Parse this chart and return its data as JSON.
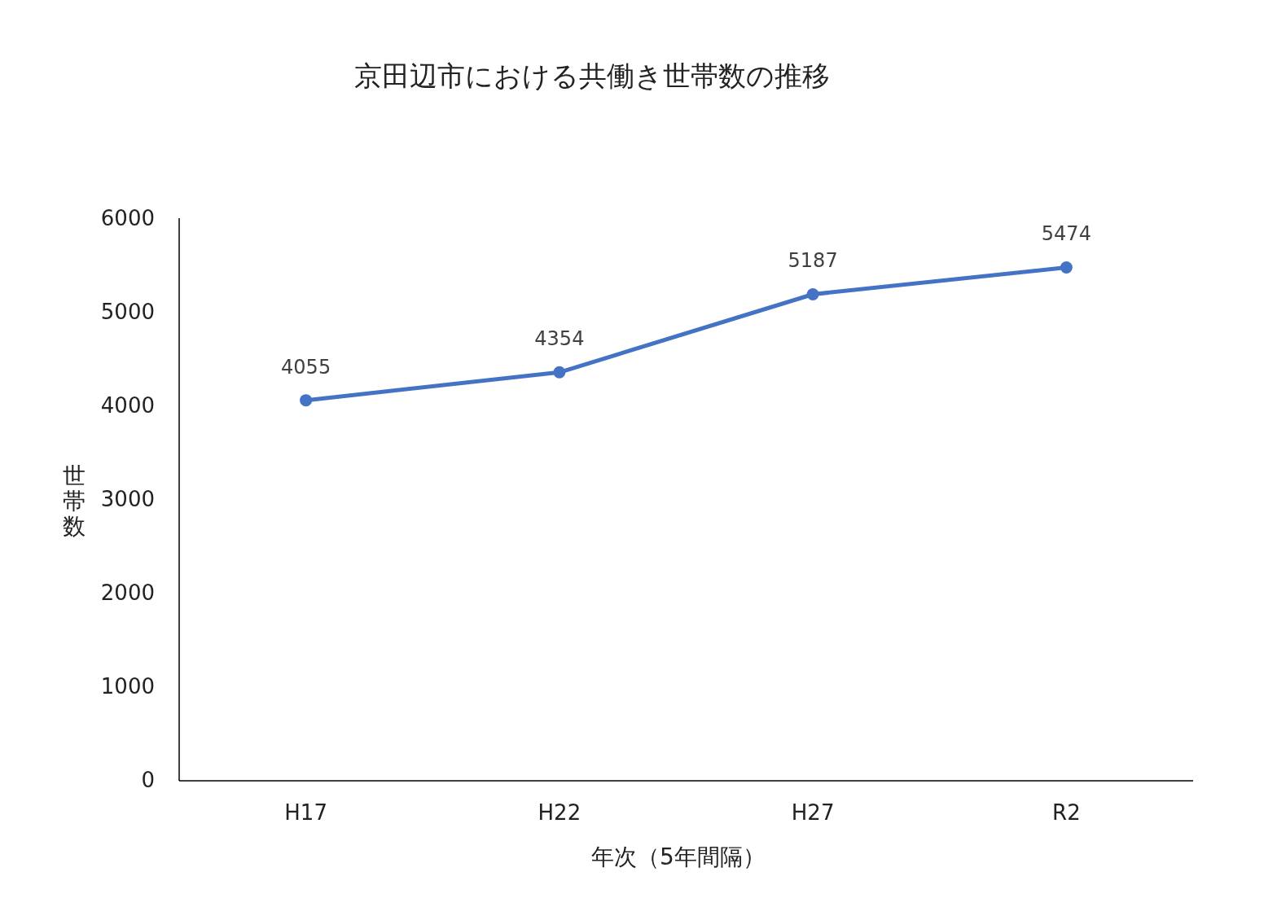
{
  "chart_data": {
    "type": "line",
    "title": "京田辺市における共働き世帯数の推移",
    "xlabel": "年次（5年間隔）",
    "ylabel": "世帯数",
    "categories": [
      "H17",
      "H22",
      "H27",
      "R2"
    ],
    "series": [
      {
        "color": "#4472c4",
        "values": [
          4055,
          4354,
          5187,
          5474
        ]
      }
    ],
    "ylim": [
      0,
      6000
    ],
    "yticks": [
      0,
      1000,
      2000,
      3000,
      4000,
      5000,
      6000
    ],
    "data_labels": true,
    "marker": "circle",
    "line_style": "solid"
  }
}
